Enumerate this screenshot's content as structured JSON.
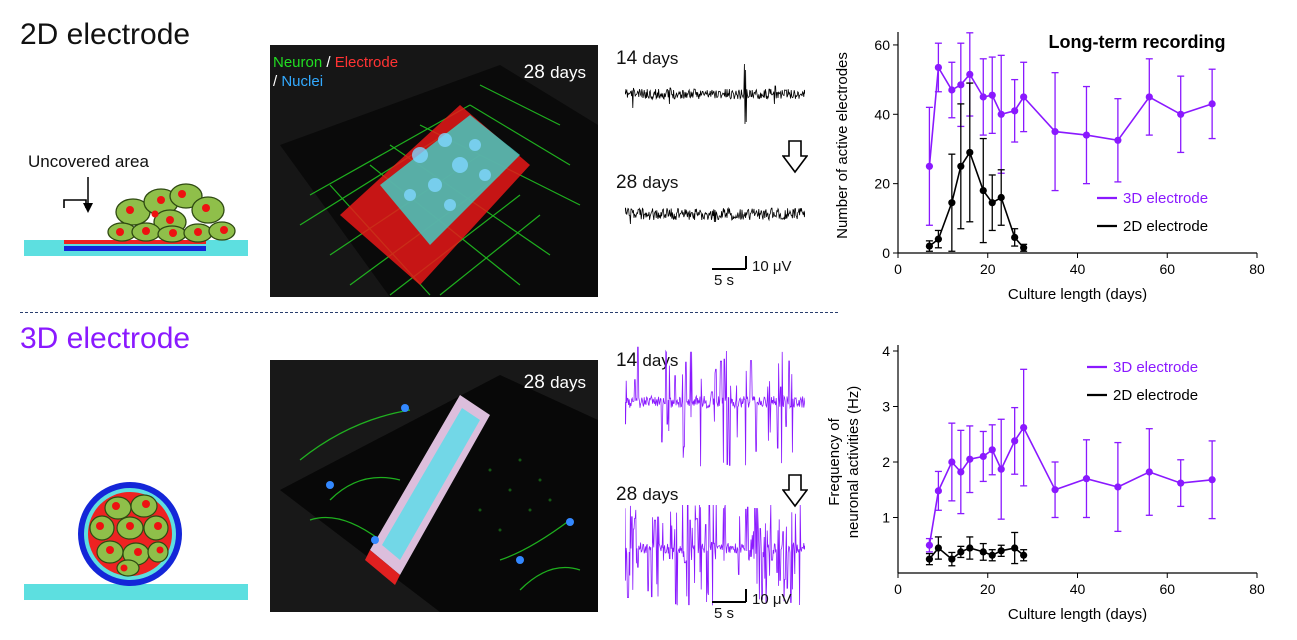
{
  "section_2d": {
    "title": "2D electrode",
    "title_color": "#111111",
    "uncovered_label": "Uncovered area"
  },
  "section_3d": {
    "title": "3D electrode",
    "title_color": "#8a19ff"
  },
  "micro_2d": {
    "stain_neuron": "Neuron",
    "sep1": " / ",
    "stain_electrode": "Electrode",
    "sep2": "/ ",
    "stain_nuclei": "Nuclei",
    "day_num": "28",
    "day_unit": "days"
  },
  "micro_3d": {
    "day_num": "28",
    "day_unit": "days"
  },
  "traces_2d": {
    "d14_num": "14",
    "d14_unit": "days",
    "d28_num": "28",
    "d28_unit": "days",
    "scale_time": "5 s",
    "scale_amp": "10 μV",
    "color": "#000000"
  },
  "traces_3d": {
    "d14_num": "14",
    "d14_unit": "days",
    "d28_num": "28",
    "d28_unit": "days",
    "scale_time": "5 s",
    "scale_amp": "10 μV",
    "color": "#8a19ff"
  },
  "colors": {
    "purple": "#8a19ff",
    "black": "#000000",
    "neuron": "#22dd22",
    "electrode": "#ff3333",
    "nuclei": "#33aaff",
    "substrate": "#5ddfe0",
    "cell": "#8fbf4a"
  },
  "chart_data": [
    {
      "type": "line",
      "title": "Long-term recording",
      "xlabel": "Culture length (days)",
      "ylabel": "Number of active electrodes",
      "xlim": [
        0,
        80
      ],
      "ylim": [
        0,
        62
      ],
      "xticks": [
        0,
        20,
        40,
        60,
        80
      ],
      "yticks": [
        0,
        20,
        40,
        60
      ],
      "legend_position": "right",
      "series": [
        {
          "name": "3D electrode",
          "color": "#8a19ff",
          "x": [
            7,
            9,
            12,
            14,
            16,
            19,
            21,
            23,
            26,
            28,
            35,
            42,
            49,
            56,
            63,
            70
          ],
          "y": [
            25,
            53.5,
            47,
            48.5,
            51.5,
            45,
            45.5,
            40,
            41,
            45,
            35,
            34,
            32.5,
            45,
            40,
            43
          ],
          "err": [
            17,
            7,
            8,
            12,
            12,
            11,
            11,
            17,
            9,
            10,
            17,
            14,
            12,
            11,
            11,
            10
          ]
        },
        {
          "name": "2D electrode",
          "color": "#000000",
          "x": [
            7,
            9,
            12,
            14,
            16,
            19,
            21,
            23,
            26,
            28
          ],
          "y": [
            2,
            4,
            14.5,
            25,
            29,
            18,
            14.5,
            16,
            4.5,
            1.5
          ],
          "err": [
            1.5,
            2.5,
            14,
            18,
            20,
            15,
            8,
            8,
            2.5,
            1
          ]
        }
      ]
    },
    {
      "type": "line",
      "title": "",
      "xlabel": "Culture length (days)",
      "ylabel": "Frequency of neuronal activities (Hz)",
      "ylabel_lines": [
        "Frequency of",
        "neuronal activities (Hz)"
      ],
      "xlim": [
        0,
        80
      ],
      "ylim": [
        0,
        4
      ],
      "xticks": [
        0,
        20,
        40,
        60,
        80
      ],
      "yticks": [
        1,
        2,
        3,
        4
      ],
      "legend_position": "top-right",
      "series": [
        {
          "name": "3D electrode",
          "color": "#8a19ff",
          "x": [
            7,
            9,
            12,
            14,
            16,
            19,
            21,
            23,
            26,
            28,
            35,
            42,
            49,
            56,
            63,
            70
          ],
          "y": [
            0.5,
            1.48,
            2.0,
            1.82,
            2.05,
            2.1,
            2.22,
            1.87,
            2.38,
            2.62,
            1.5,
            1.7,
            1.55,
            1.82,
            1.62,
            1.68
          ],
          "err": [
            0.12,
            0.35,
            0.7,
            0.75,
            0.6,
            0.45,
            0.45,
            0.9,
            0.6,
            1.05,
            0.5,
            0.7,
            0.8,
            0.78,
            0.42,
            0.7
          ]
        },
        {
          "name": "2D electrode",
          "color": "#000000",
          "x": [
            7,
            9,
            12,
            14,
            16,
            19,
            21,
            23,
            26,
            28
          ],
          "y": [
            0.25,
            0.45,
            0.25,
            0.38,
            0.45,
            0.38,
            0.32,
            0.4,
            0.45,
            0.32
          ],
          "err": [
            0.1,
            0.2,
            0.12,
            0.1,
            0.2,
            0.15,
            0.1,
            0.1,
            0.28,
            0.1
          ]
        }
      ]
    }
  ]
}
